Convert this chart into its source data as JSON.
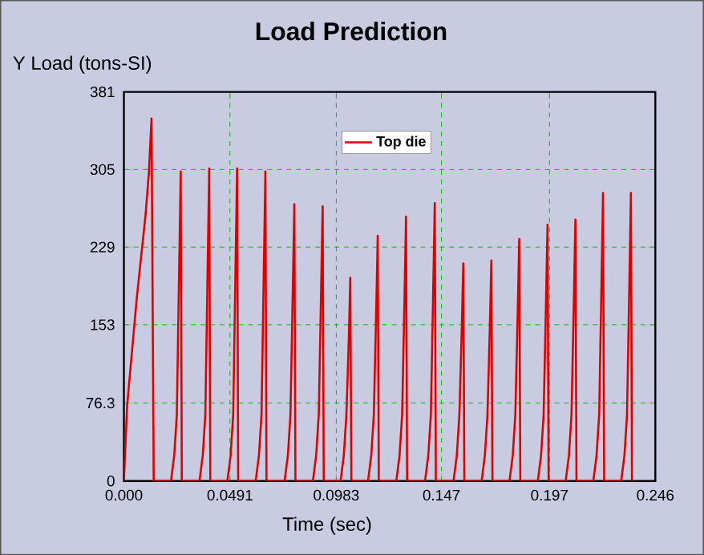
{
  "chart_data": {
    "type": "line",
    "title": "Load Prediction",
    "xlabel": "Time (sec)",
    "ylabel": "Y Load (tons-SI)",
    "xlim": [
      0,
      0.246
    ],
    "ylim": [
      0,
      381
    ],
    "xticks": [
      {
        "value": 0,
        "label": "0.000"
      },
      0.0491,
      0.0983,
      0.147,
      0.197,
      0.246
    ],
    "yticks": [
      0,
      76.3,
      153,
      229,
      305,
      381
    ],
    "grid": true,
    "legend": "top",
    "x": [
      0,
      0.0015,
      0.006,
      0.01,
      0.0115,
      0.0128,
      0.0138,
      0.0218,
      0.0233,
      0.0245,
      0.0256,
      0.0263,
      0.0268,
      0.035,
      0.0365,
      0.0377,
      0.0388,
      0.0395,
      0.04,
      0.0479,
      0.0494,
      0.0506,
      0.0517,
      0.0524,
      0.0529,
      0.061,
      0.0625,
      0.0637,
      0.0648,
      0.0655,
      0.066,
      0.0744,
      0.0759,
      0.0771,
      0.0782,
      0.0789,
      0.0794,
      0.0875,
      0.089,
      0.0902,
      0.0913,
      0.092,
      0.0925,
      0.1003,
      0.1018,
      0.103,
      0.1041,
      0.1048,
      0.1053,
      0.113,
      0.1145,
      0.1157,
      0.1168,
      0.1175,
      0.118,
      0.1261,
      0.1276,
      0.1288,
      0.1299,
      0.1306,
      0.1311,
      0.1394,
      0.1409,
      0.1421,
      0.1432,
      0.1439,
      0.1444,
      0.1526,
      0.1541,
      0.1553,
      0.1564,
      0.1571,
      0.1576,
      0.1656,
      0.1671,
      0.1683,
      0.1694,
      0.1701,
      0.1706,
      0.1785,
      0.18,
      0.1812,
      0.1823,
      0.183,
      0.1835,
      0.1916,
      0.1931,
      0.1943,
      0.1954,
      0.1961,
      0.1966,
      0.2045,
      0.206,
      0.2072,
      0.2083,
      0.209,
      0.2095,
      0.2173,
      0.2188,
      0.22,
      0.2211,
      0.2218,
      0.2223,
      0.2302,
      0.2317,
      0.2329,
      0.234,
      0.2347,
      0.2352
    ],
    "series": [
      {
        "name": "Top die",
        "color": "#e00000",
        "values": [
          0,
          74,
          180,
          260,
          300,
          355,
          0,
          0,
          25,
          65,
          212,
          303,
          0,
          0,
          25,
          65,
          214,
          306,
          0,
          0,
          25,
          65,
          214,
          306,
          0,
          0,
          25,
          65,
          212,
          303,
          0,
          0,
          25,
          65,
          190,
          271,
          0,
          0,
          25,
          65,
          188,
          269,
          0,
          0,
          25,
          65,
          139,
          199,
          0,
          0,
          25,
          65,
          168,
          240,
          0,
          0,
          25,
          65,
          181,
          259,
          0,
          0,
          25,
          65,
          190,
          272,
          0,
          0,
          25,
          65,
          149,
          213,
          0,
          0,
          25,
          65,
          151,
          216,
          0,
          0,
          25,
          65,
          166,
          237,
          0,
          0,
          25,
          65,
          176,
          251,
          0,
          0,
          25,
          65,
          179,
          256,
          0,
          0,
          25,
          65,
          197,
          282,
          0,
          0,
          25,
          65,
          197,
          282,
          0
        ]
      }
    ]
  }
}
